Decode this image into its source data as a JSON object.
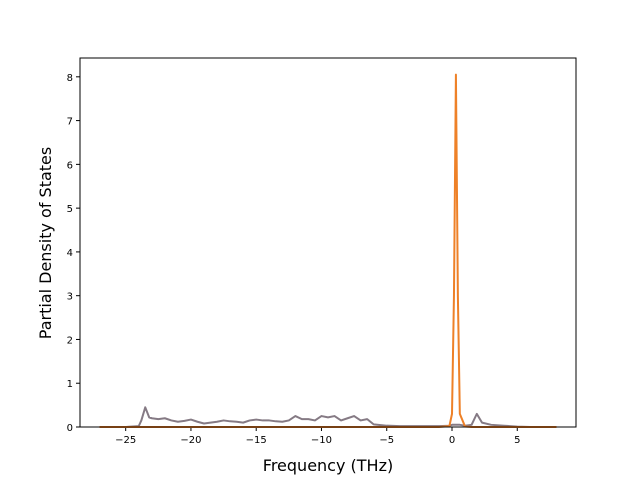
{
  "chart_data": {
    "type": "line",
    "xlabel": "Frequency (THz)",
    "ylabel": "Partial Density of States",
    "x": [
      -27,
      -26,
      -25,
      -24,
      -23.8,
      -23.5,
      -23.2,
      -23,
      -22.5,
      -22,
      -21.5,
      -21,
      -20.5,
      -20,
      -19.5,
      -19,
      -18.5,
      -18,
      -17.5,
      -17,
      -16.5,
      -16,
      -15.5,
      -15,
      -14.5,
      -14,
      -13.5,
      -13,
      -12.5,
      -12,
      -11.5,
      -11,
      -10.5,
      -10,
      -9.5,
      -9,
      -8.5,
      -8,
      -7.5,
      -7,
      -6.5,
      -6,
      -5,
      -4,
      -3,
      -2,
      -1,
      -0.2,
      0,
      0.15,
      0.3,
      0.45,
      0.6,
      1,
      1.5,
      1.9,
      2.3,
      3,
      4,
      5,
      6,
      8
    ],
    "series": [
      {
        "color": "#857a84",
        "values": [
          0,
          0,
          0,
          0.02,
          0.15,
          0.45,
          0.22,
          0.2,
          0.18,
          0.2,
          0.15,
          0.12,
          0.14,
          0.17,
          0.12,
          0.08,
          0.1,
          0.12,
          0.15,
          0.13,
          0.12,
          0.1,
          0.15,
          0.17,
          0.15,
          0.15,
          0.13,
          0.12,
          0.15,
          0.25,
          0.18,
          0.18,
          0.15,
          0.25,
          0.22,
          0.25,
          0.15,
          0.2,
          0.25,
          0.15,
          0.18,
          0.06,
          0.03,
          0.02,
          0.02,
          0.02,
          0.02,
          0.03,
          0.05,
          0.05,
          0.05,
          0.05,
          0.05,
          0.03,
          0.05,
          0.3,
          0.1,
          0.05,
          0.03,
          0.01,
          0,
          0
        ]
      },
      {
        "color": "#ee8128",
        "values": [
          0,
          0,
          0,
          0,
          0,
          0,
          0,
          0,
          0,
          0,
          0,
          0,
          0,
          0,
          0,
          0,
          0,
          0,
          0,
          0,
          0,
          0,
          0,
          0,
          0,
          0,
          0,
          0,
          0,
          0,
          0,
          0,
          0,
          0,
          0,
          0,
          0,
          0,
          0,
          0,
          0,
          0,
          0,
          0,
          0,
          0,
          0,
          0.02,
          0.3,
          3,
          8.05,
          3,
          0.3,
          0.01,
          0,
          0,
          0,
          0,
          0,
          0,
          0,
          0
        ]
      }
    ],
    "xlim": [
      -28.5,
      9.5
    ],
    "ylim": [
      0,
      8.43
    ],
    "xticks": [
      {
        "value": -25,
        "label": "−25"
      },
      {
        "value": -20,
        "label": "−20"
      },
      {
        "value": -15,
        "label": "−15"
      },
      {
        "value": -10,
        "label": "−10"
      },
      {
        "value": -5,
        "label": "−5"
      },
      0,
      5
    ],
    "yticks": [
      0,
      1,
      2,
      3,
      4,
      5,
      6,
      7,
      8
    ]
  }
}
